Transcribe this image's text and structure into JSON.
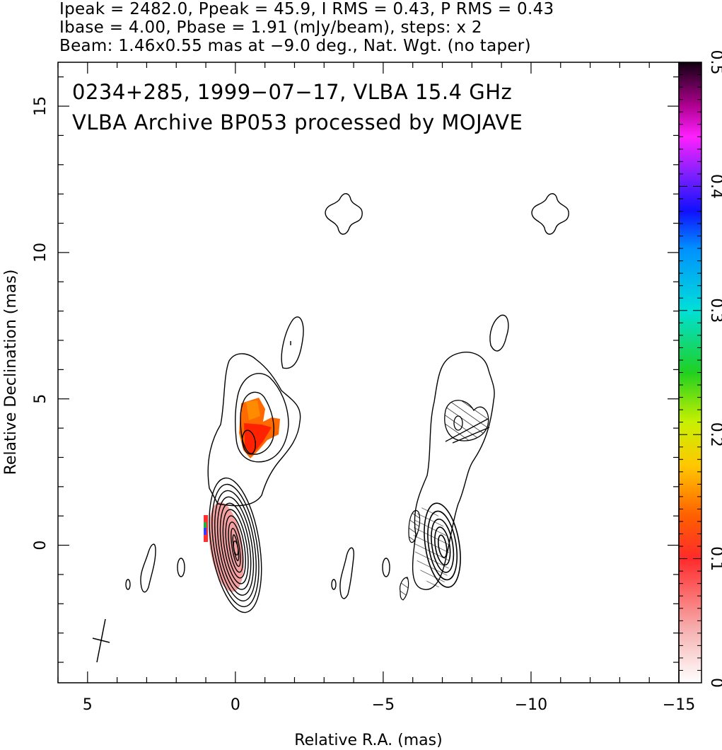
{
  "header": {
    "line1": "Ipeak = 2482.0, Ppeak = 45.9, I RMS = 0.43, P RMS = 0.43",
    "line2": "Ibase = 4.00, Pbase = 1.91 (mJy/beam), steps: x 2",
    "line3": "Beam: 1.46x0.55 mas at −9.0 deg., Nat. Wgt. (no taper)"
  },
  "chart_data": {
    "type": "heatmap",
    "annotations": [
      "0234+285, 1999−07−17, VLBA 15.4 GHz",
      "VLBA Archive BP053 processed by MOJAVE"
    ],
    "xlabel": "Relative R.A. (mas)",
    "ylabel": "Relative Declination (mas)",
    "xlim": [
      6,
      -15
    ],
    "ylim": [
      -4.7,
      16.5
    ],
    "x_ticks": [
      5,
      0,
      -5,
      -10,
      -15
    ],
    "x_tick_labels": [
      "5",
      "0",
      "−5",
      "−10",
      "−15"
    ],
    "y_ticks": [
      0,
      5,
      10,
      15
    ],
    "y_tick_labels": [
      "0",
      "5",
      "10",
      "15"
    ],
    "colorbar": {
      "min": 0,
      "max": 0.5,
      "ticks": [
        0,
        0.1,
        0.2,
        0.3,
        0.4,
        0.5
      ],
      "tick_labels": [
        "0",
        "0.1",
        "0.2",
        "0.3",
        "0.4",
        "0.5"
      ]
    },
    "panels": [
      {
        "name": "total_intensity_with_fractional_polarization",
        "core": {
          "x": 0.0,
          "y": 0.0,
          "contour_levels": 11
        },
        "jet_knot": {
          "x": -0.9,
          "y": 4.0,
          "contour_levels": 3
        },
        "color_regions": [
          {
            "x": -0.85,
            "y": 4.1,
            "value": 0.12
          },
          {
            "x": 0.0,
            "y": 0.0,
            "value": 0.03
          }
        ]
      },
      {
        "name": "total_intensity_with_polarization_vectors",
        "core": {
          "x": -7.0,
          "y": 0.0,
          "contour_levels": 5
        },
        "jet_knot": {
          "x": -7.9,
          "y": 4.1,
          "contour_levels": 2
        }
      }
    ],
    "beam": {
      "major_mas": 1.46,
      "minor_mas": 0.55,
      "pa_deg": -9.0,
      "x": 4.3,
      "y": -3.2
    }
  },
  "colors": {
    "ink": "#000000",
    "background": "#ffffff",
    "core_fill": "#f4a0a0",
    "knot_fill_a": "#ff8800",
    "knot_fill_b": "#ff3300"
  }
}
